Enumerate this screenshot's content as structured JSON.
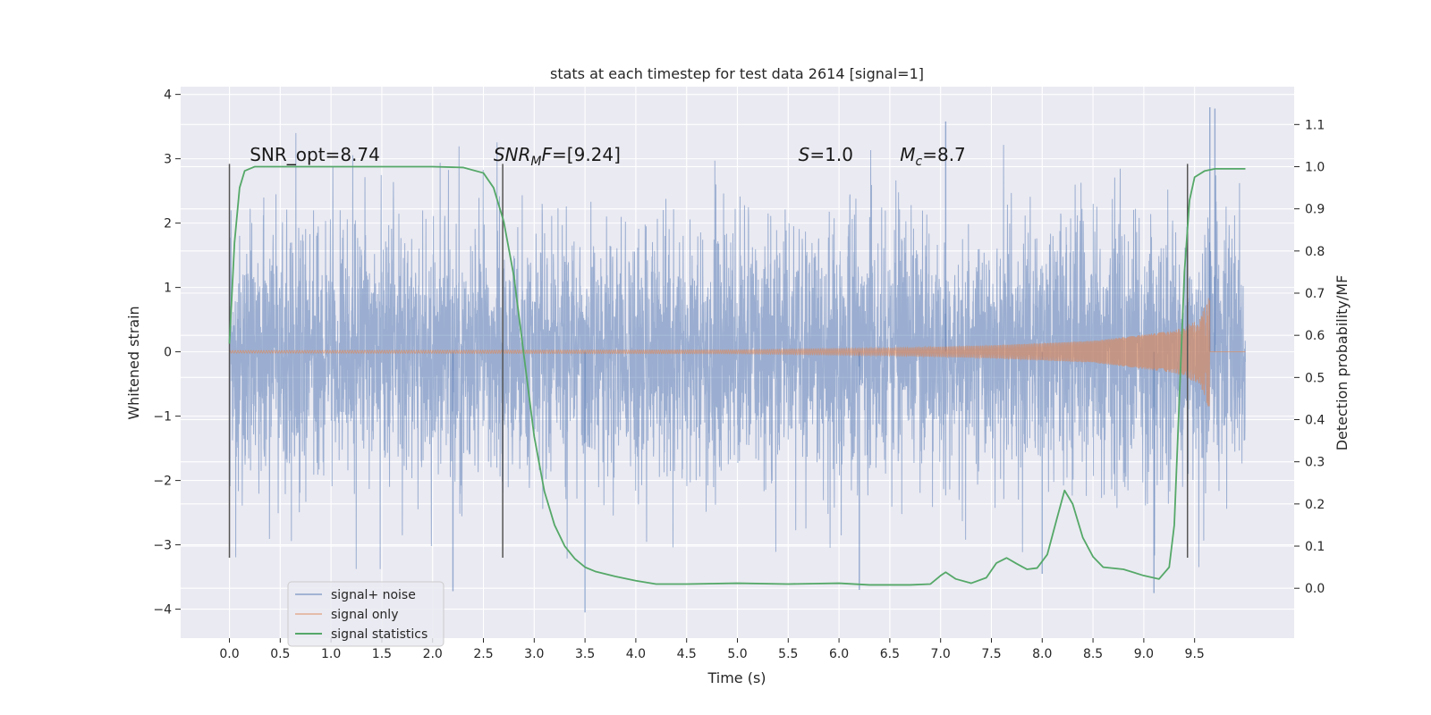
{
  "chart_data": {
    "type": "line",
    "title": "stats at each timestep for test data 2614 [signal=1]",
    "xlabel": "Time (s)",
    "ylabel": "Whitened strain",
    "y2label": "Detection probability/MF",
    "xlim": [
      -0.48,
      10.48
    ],
    "ylim": [
      -4.45,
      4.12
    ],
    "y2lim": [
      -0.1183,
      1.1897
    ],
    "x_ticks": [
      "0.0",
      "0.5",
      "1.0",
      "1.5",
      "2.0",
      "2.5",
      "3.0",
      "3.5",
      "4.0",
      "4.5",
      "5.0",
      "5.5",
      "6.0",
      "6.5",
      "7.0",
      "7.5",
      "8.0",
      "8.5",
      "9.0",
      "9.5"
    ],
    "y_ticks": [
      "4",
      "3",
      "2",
      "1",
      "0",
      "−1",
      "−2",
      "−3",
      "−4"
    ],
    "y2_ticks": [
      "1.1",
      "1.0",
      "0.9",
      "0.8",
      "0.7",
      "0.6",
      "0.5",
      "0.4",
      "0.3",
      "0.2",
      "0.1",
      "0.0"
    ],
    "grid": true,
    "legend_position": "lower-left",
    "colors": {
      "noise": "#4c72b0",
      "signal": "#dd8452",
      "stats": "#55a868",
      "vlines": "#555555",
      "plot_bg": "#eaeaf2",
      "grid": "#ffffff"
    },
    "annotations": [
      {
        "id": "snr-opt",
        "label": "SNR_opt=8.74",
        "x": 0.2,
        "y": 2.97
      },
      {
        "id": "snr-mf",
        "label": "SNR_MF=[9.24]",
        "x": 2.6,
        "y": 2.97
      },
      {
        "id": "s-value",
        "label": "S=1.0",
        "x": 5.6,
        "y": 2.97
      },
      {
        "id": "mc-value",
        "label": "M_c=8.7",
        "x": 6.6,
        "y": 2.97
      }
    ],
    "vertical_lines": [
      {
        "x": 0.0,
        "y_range": [
          -3.2,
          2.92
        ]
      },
      {
        "x": 2.69,
        "y_range": [
          -3.2,
          2.92
        ]
      },
      {
        "x": 9.43,
        "y_range": [
          -3.2,
          2.92
        ]
      }
    ],
    "series": [
      {
        "name": "signal+ noise",
        "kind": "noise",
        "x_range": [
          0.0,
          10.0
        ],
        "typical_range": [
          -1.4,
          1.4
        ],
        "notable_peaks": [
          {
            "x": 7.05,
            "y": 3.58
          },
          {
            "x": 9.65,
            "y": 3.8
          },
          {
            "x": 9.7,
            "y": 3.78
          },
          {
            "x": 3.5,
            "y": -4.05
          },
          {
            "x": 2.2,
            "y": -3.72
          },
          {
            "x": 9.1,
            "y": -3.75
          },
          {
            "x": 8.0,
            "y": -3.45
          },
          {
            "x": 6.2,
            "y": -3.7
          }
        ]
      },
      {
        "name": "signal only",
        "kind": "chirp",
        "start": 0.0,
        "merger_x": 9.65,
        "end": 10.0,
        "peak_amplitude": 0.92,
        "amplitude_envelope": [
          [
            0.0,
            0.02
          ],
          [
            5.0,
            0.03
          ],
          [
            6.5,
            0.06
          ],
          [
            7.5,
            0.1
          ],
          [
            8.5,
            0.17
          ],
          [
            9.3,
            0.33
          ],
          [
            9.55,
            0.5
          ],
          [
            9.65,
            0.92
          ],
          [
            9.68,
            0.1
          ],
          [
            10.0,
            0.01
          ]
        ]
      },
      {
        "name": "signal statistics",
        "kind": "line",
        "axis": "right",
        "points": [
          [
            0.0,
            0.58
          ],
          [
            0.05,
            0.82
          ],
          [
            0.1,
            0.95
          ],
          [
            0.15,
            0.99
          ],
          [
            0.25,
            1.0
          ],
          [
            1.0,
            1.0
          ],
          [
            2.0,
            1.0
          ],
          [
            2.3,
            0.998
          ],
          [
            2.5,
            0.985
          ],
          [
            2.6,
            0.95
          ],
          [
            2.7,
            0.87
          ],
          [
            2.8,
            0.74
          ],
          [
            2.9,
            0.55
          ],
          [
            3.0,
            0.36
          ],
          [
            3.1,
            0.23
          ],
          [
            3.2,
            0.15
          ],
          [
            3.3,
            0.1
          ],
          [
            3.4,
            0.07
          ],
          [
            3.5,
            0.05
          ],
          [
            3.6,
            0.04
          ],
          [
            3.8,
            0.028
          ],
          [
            4.0,
            0.018
          ],
          [
            4.2,
            0.01
          ],
          [
            4.5,
            0.01
          ],
          [
            5.0,
            0.012
          ],
          [
            5.5,
            0.01
          ],
          [
            6.0,
            0.012
          ],
          [
            6.3,
            0.008
          ],
          [
            6.7,
            0.008
          ],
          [
            6.9,
            0.01
          ],
          [
            7.0,
            0.03
          ],
          [
            7.05,
            0.038
          ],
          [
            7.15,
            0.022
          ],
          [
            7.3,
            0.012
          ],
          [
            7.45,
            0.025
          ],
          [
            7.55,
            0.06
          ],
          [
            7.65,
            0.072
          ],
          [
            7.75,
            0.058
          ],
          [
            7.85,
            0.045
          ],
          [
            7.95,
            0.048
          ],
          [
            8.05,
            0.08
          ],
          [
            8.15,
            0.17
          ],
          [
            8.22,
            0.232
          ],
          [
            8.3,
            0.2
          ],
          [
            8.4,
            0.12
          ],
          [
            8.5,
            0.075
          ],
          [
            8.6,
            0.05
          ],
          [
            8.8,
            0.045
          ],
          [
            9.0,
            0.03
          ],
          [
            9.15,
            0.022
          ],
          [
            9.25,
            0.05
          ],
          [
            9.3,
            0.15
          ],
          [
            9.35,
            0.45
          ],
          [
            9.4,
            0.75
          ],
          [
            9.45,
            0.92
          ],
          [
            9.5,
            0.975
          ],
          [
            9.6,
            0.99
          ],
          [
            9.7,
            0.995
          ],
          [
            10.0,
            0.995
          ]
        ]
      }
    ]
  }
}
